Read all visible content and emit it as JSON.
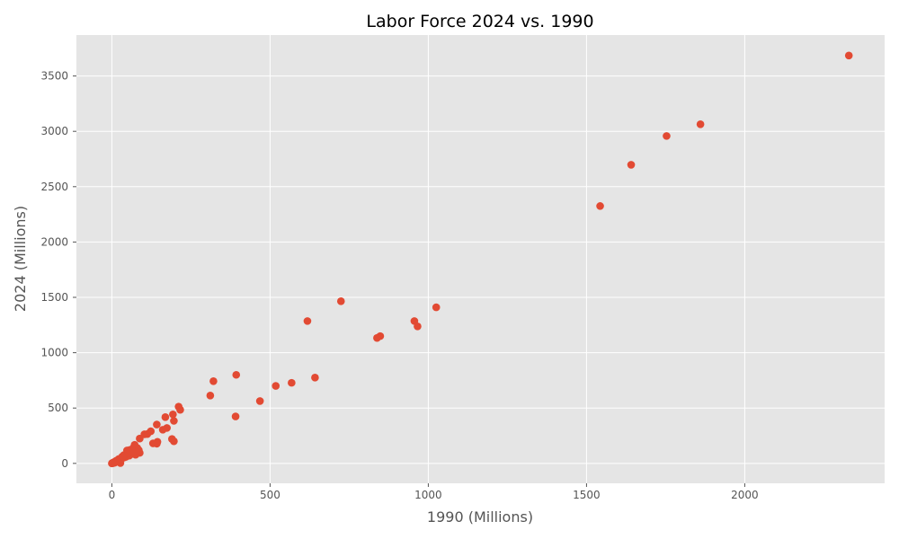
{
  "chart_data": {
    "type": "scatter",
    "title": "Labor Force 2024 vs. 1990",
    "xlabel": "1990 (Millions)",
    "ylabel": "2024 (Millions)",
    "xlim": [
      -112,
      2442
    ],
    "ylim": [
      -180,
      3870
    ],
    "xticks": [
      0,
      500,
      1000,
      1500,
      2000
    ],
    "yticks": [
      0,
      500,
      1000,
      1500,
      2000,
      2500,
      3000,
      3500
    ],
    "grid": true,
    "background": "#E5E5E5",
    "gridColor": "#FFFFFF",
    "markerColor": "#E24A33",
    "points": [
      [
        2329,
        3685
      ],
      [
        1860,
        3064
      ],
      [
        1753,
        2958
      ],
      [
        1641,
        2698
      ],
      [
        1543,
        2325
      ],
      [
        1025,
        1410
      ],
      [
        724,
        1465
      ],
      [
        618,
        1286
      ],
      [
        956,
        1286
      ],
      [
        966,
        1238
      ],
      [
        848,
        1150
      ],
      [
        838,
        1133
      ],
      [
        393,
        800
      ],
      [
        321,
        743
      ],
      [
        311,
        613
      ],
      [
        391,
        424
      ],
      [
        642,
        775
      ],
      [
        568,
        728
      ],
      [
        518,
        700
      ],
      [
        468,
        563
      ],
      [
        211,
        513
      ],
      [
        216,
        484
      ],
      [
        193,
        443
      ],
      [
        196,
        384
      ],
      [
        169,
        418
      ],
      [
        174,
        320
      ],
      [
        161,
        304
      ],
      [
        142,
        351
      ],
      [
        123,
        290
      ],
      [
        112,
        265
      ],
      [
        103,
        263
      ],
      [
        88,
        224
      ],
      [
        190,
        220
      ],
      [
        196,
        200
      ],
      [
        144,
        195
      ],
      [
        142,
        178
      ],
      [
        130,
        181
      ],
      [
        72,
        168
      ],
      [
        68,
        141
      ],
      [
        80,
        140
      ],
      [
        57,
        122
      ],
      [
        48,
        117
      ],
      [
        88,
        95
      ],
      [
        75,
        78
      ],
      [
        65,
        85
      ],
      [
        55,
        70
      ],
      [
        45,
        60
      ],
      [
        35,
        50
      ],
      [
        30,
        45
      ],
      [
        25,
        35
      ],
      [
        20,
        30
      ],
      [
        15,
        25
      ],
      [
        12,
        20
      ],
      [
        10,
        15
      ],
      [
        8,
        12
      ],
      [
        6,
        10
      ],
      [
        5,
        8
      ],
      [
        3,
        5
      ],
      [
        2,
        3
      ],
      [
        1,
        2
      ],
      [
        0,
        0
      ],
      [
        27,
        3
      ],
      [
        40,
        55
      ],
      [
        60,
        100
      ],
      [
        50,
        90
      ],
      [
        38,
        75
      ],
      [
        22,
        40
      ],
      [
        18,
        28
      ],
      [
        14,
        18
      ],
      [
        9,
        6
      ],
      [
        4,
        2
      ],
      [
        70,
        110
      ],
      [
        85,
        120
      ],
      [
        33,
        62
      ]
    ]
  }
}
